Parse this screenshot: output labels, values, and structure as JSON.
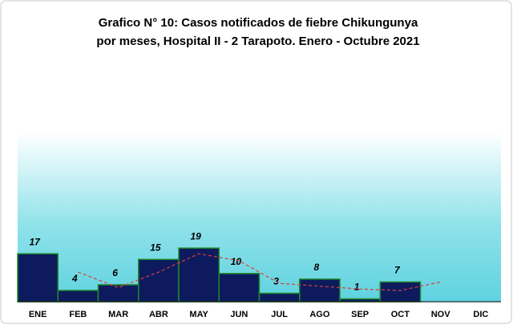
{
  "chart_data": {
    "type": "bar",
    "title": [
      "Grafico N° 10: Casos notificados  de fiebre Chikungunya",
      "por meses, Hospital II - 2 Tarapoto. Enero - Octubre 2021"
    ],
    "categories": [
      "ENE",
      "FEB",
      "MAR",
      "ABR",
      "MAY",
      "JUN",
      "JUL",
      "AGO",
      "SEP",
      "OCT",
      "NOV",
      "DIC"
    ],
    "series": [
      {
        "type": "bar",
        "color": "#0d1b5e",
        "edge": "#1f8a2a",
        "values": [
          17,
          4,
          6,
          15,
          19,
          10,
          3,
          8,
          1,
          7,
          null,
          null
        ]
      },
      {
        "type": "line",
        "color": "#e03c3c",
        "dashed": true,
        "values": [
          null,
          10.5,
          5,
          10.5,
          17,
          14.5,
          6.5,
          5.5,
          4.5,
          4,
          7,
          null
        ]
      }
    ],
    "ylim": [
      0,
      60
    ]
  }
}
